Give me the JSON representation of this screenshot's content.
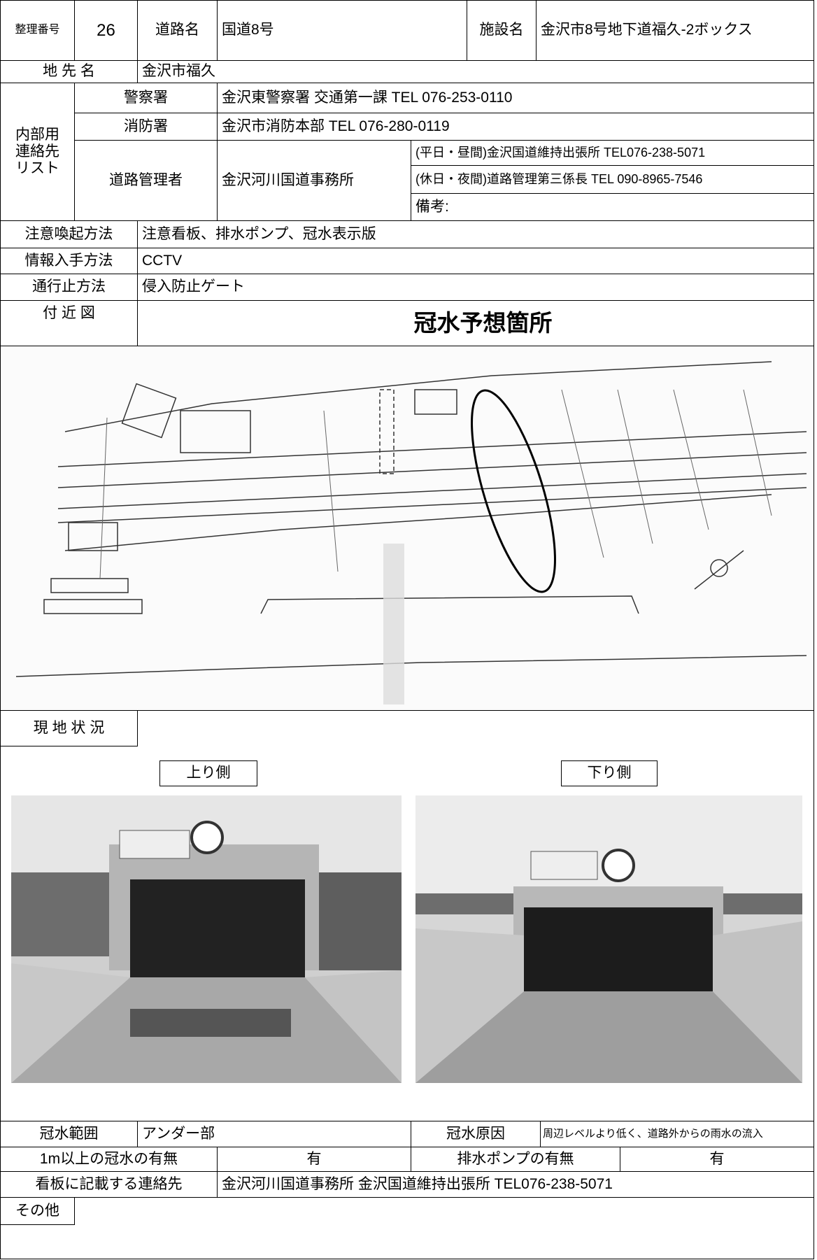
{
  "header": {
    "number_label": "整理番号",
    "number": "26",
    "road_label": "道路名",
    "road": "国道8号",
    "facility_label": "施設名",
    "facility": "金沢市8号地下道福久-2ボックス"
  },
  "location": {
    "label": "地 先 名",
    "value": "金沢市福久"
  },
  "contacts": {
    "label_lines": [
      "内部用",
      "連絡先",
      "リスト"
    ],
    "police": {
      "label": "警察署",
      "value": "金沢東警察署 交通第一課 TEL 076-253-0110"
    },
    "fire": {
      "label": "消防署",
      "value": "金沢市消防本部 TEL 076-280-0119"
    },
    "road_admin": {
      "label": "道路管理者",
      "office": "金沢河川国道事務所",
      "weekday": "(平日・昼間)金沢国道維持出張所 TEL076-238-5071",
      "holiday": "(休日・夜間)道路管理第三係長 TEL 090-8965-7546",
      "remarks": "備考:"
    }
  },
  "warning": {
    "label": "注意喚起方法",
    "value": "注意看板、排水ポンプ、冠水表示版"
  },
  "info": {
    "label": "情報入手方法",
    "value": "CCTV"
  },
  "closure": {
    "label": "通行止方法",
    "value": "侵入防止ゲート"
  },
  "nearby_map": {
    "label": "付 近 図",
    "title": "冠水予想箇所"
  },
  "site": {
    "label": "現 地 状 況",
    "up_label": "上り側",
    "down_label": "下り側"
  },
  "flood": {
    "range_label": "冠水範囲",
    "range": "アンダー部",
    "cause_label": "冠水原因",
    "cause": "周辺レベルより低く、道路外からの雨水の流入"
  },
  "deep_flood": {
    "label": "1m以上の冠水の有無",
    "value": "有",
    "pump_label": "排水ポンプの有無",
    "pump": "有"
  },
  "sign_contact": {
    "label": "看板に記載する連絡先",
    "value": "金沢河川国道事務所 金沢国道維持出張所 TEL076-238-5071"
  },
  "other": {
    "label": "その他"
  }
}
